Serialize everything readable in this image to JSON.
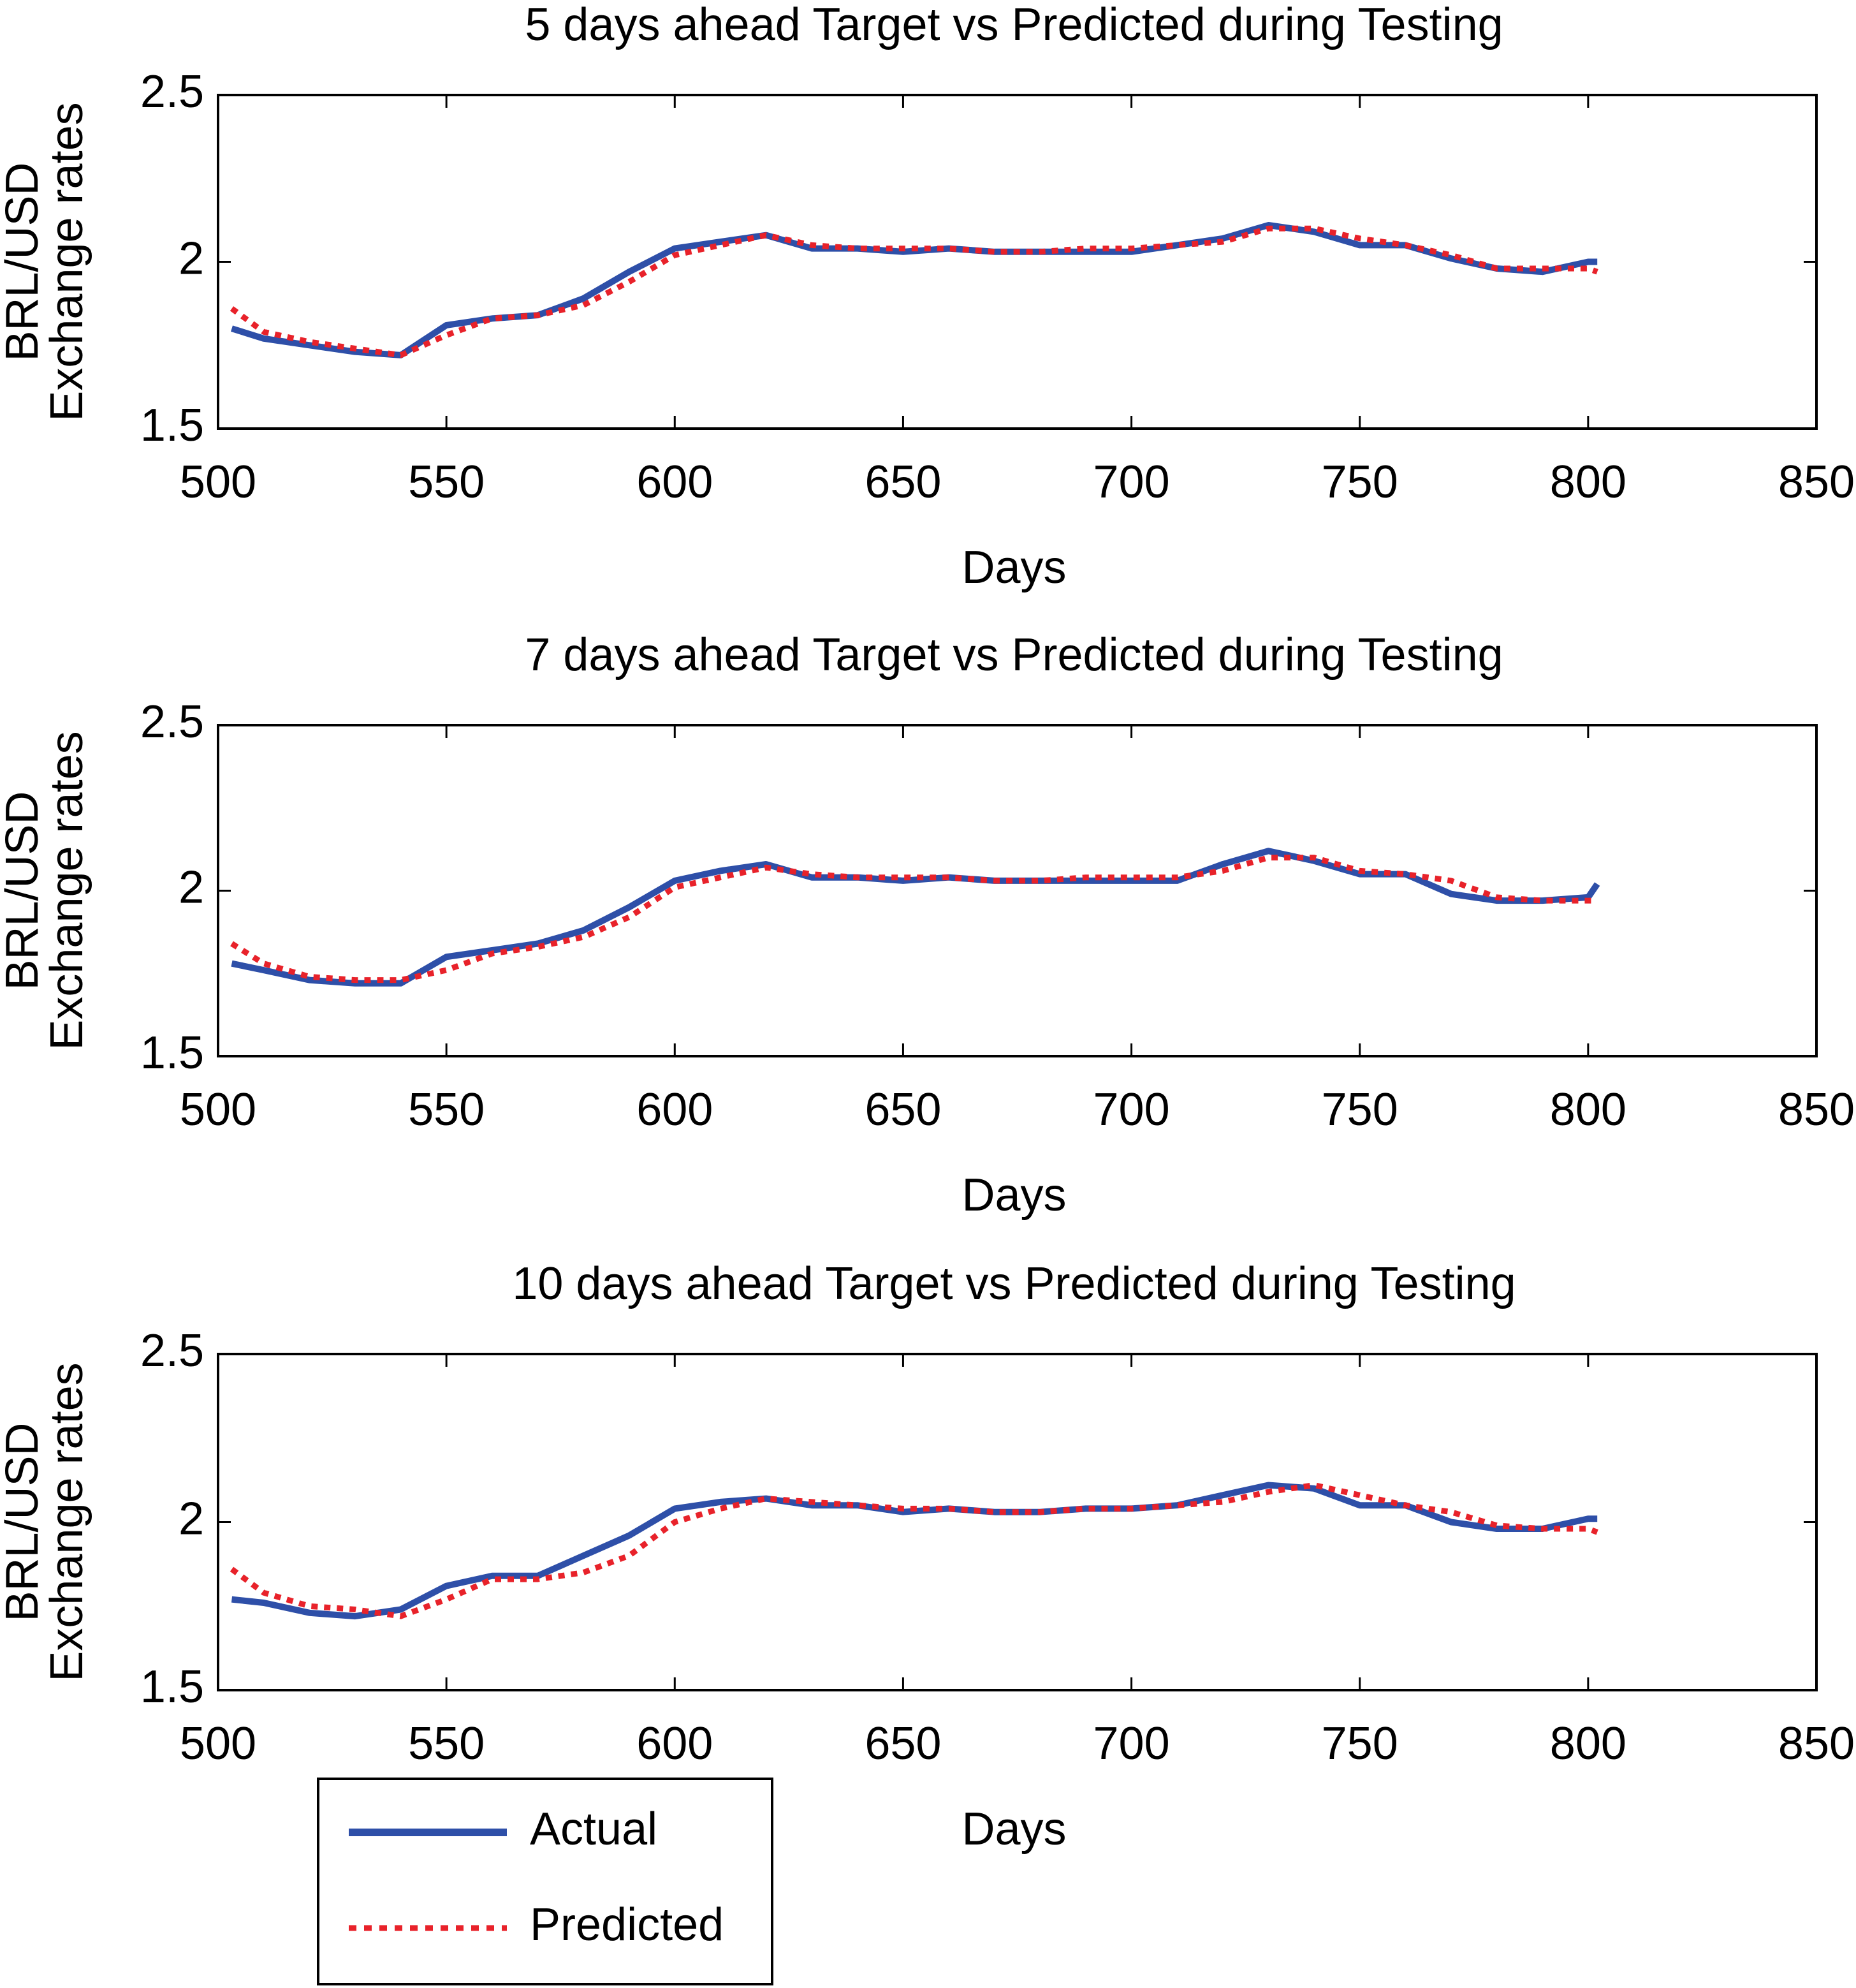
{
  "chart_data": [
    {
      "type": "line",
      "title": "5 days ahead Target vs Predicted during Testing",
      "xlabel": "Days",
      "ylabel": [
        "BRL/USD",
        "Exchange rates"
      ],
      "x": [
        503,
        510,
        520,
        530,
        540,
        550,
        560,
        570,
        580,
        590,
        600,
        610,
        620,
        630,
        640,
        650,
        660,
        670,
        680,
        690,
        700,
        710,
        720,
        730,
        740,
        750,
        760,
        770,
        780,
        790,
        800,
        802
      ],
      "series": [
        {
          "color": "#2e4fa8",
          "values": [
            1.8,
            1.77,
            1.75,
            1.73,
            1.72,
            1.81,
            1.83,
            1.84,
            1.89,
            1.97,
            2.04,
            2.06,
            2.08,
            2.04,
            2.04,
            2.03,
            2.04,
            2.03,
            2.03,
            2.03,
            2.03,
            2.05,
            2.07,
            2.11,
            2.09,
            2.05,
            2.05,
            2.01,
            1.98,
            1.97,
            2.0,
            2.0
          ]
        },
        {
          "color": "#e8222a",
          "dashed": true,
          "values": [
            1.86,
            1.79,
            1.76,
            1.74,
            1.72,
            1.78,
            1.83,
            1.84,
            1.87,
            1.94,
            2.02,
            2.05,
            2.08,
            2.05,
            2.04,
            2.04,
            2.04,
            2.03,
            2.03,
            2.04,
            2.04,
            2.05,
            2.06,
            2.1,
            2.1,
            2.07,
            2.05,
            2.02,
            1.98,
            1.98,
            1.98,
            1.97
          ]
        }
      ],
      "xlim": [
        500,
        850
      ],
      "xticks": [
        500,
        550,
        600,
        650,
        700,
        750,
        800,
        850
      ],
      "ylim": [
        1.5,
        2.5
      ],
      "yticks": [
        1.5,
        2,
        2.5
      ]
    },
    {
      "type": "line",
      "title": "7 days ahead Target vs Predicted during Testing",
      "xlabel": "Days",
      "ylabel": [
        "BRL/USD",
        "Exchange rates"
      ],
      "x": [
        503,
        510,
        520,
        530,
        540,
        550,
        560,
        570,
        580,
        590,
        600,
        610,
        620,
        630,
        640,
        650,
        660,
        670,
        680,
        690,
        700,
        710,
        720,
        730,
        740,
        750,
        760,
        770,
        780,
        790,
        800,
        802
      ],
      "series": [
        {
          "color": "#2e4fa8",
          "values": [
            1.78,
            1.76,
            1.73,
            1.72,
            1.72,
            1.8,
            1.82,
            1.84,
            1.88,
            1.95,
            2.03,
            2.06,
            2.08,
            2.04,
            2.04,
            2.03,
            2.04,
            2.03,
            2.03,
            2.03,
            2.03,
            2.03,
            2.08,
            2.12,
            2.09,
            2.05,
            2.05,
            1.99,
            1.97,
            1.97,
            1.98,
            2.02
          ]
        },
        {
          "color": "#e8222a",
          "dashed": true,
          "values": [
            1.84,
            1.78,
            1.74,
            1.73,
            1.73,
            1.76,
            1.81,
            1.83,
            1.86,
            1.92,
            2.01,
            2.04,
            2.07,
            2.05,
            2.04,
            2.04,
            2.04,
            2.03,
            2.03,
            2.04,
            2.04,
            2.04,
            2.06,
            2.1,
            2.1,
            2.06,
            2.05,
            2.03,
            1.98,
            1.97,
            1.97,
            1.97
          ]
        }
      ],
      "xlim": [
        500,
        850
      ],
      "xticks": [
        500,
        550,
        600,
        650,
        700,
        750,
        800,
        850
      ],
      "ylim": [
        1.5,
        2.5
      ],
      "yticks": [
        1.5,
        2,
        2.5
      ]
    },
    {
      "type": "line",
      "title": "10 days ahead Target vs Predicted during Testing",
      "xlabel": "Days",
      "ylabel": [
        "BRL/USD",
        "Exchange rates"
      ],
      "x": [
        503,
        510,
        520,
        530,
        540,
        550,
        560,
        570,
        580,
        590,
        600,
        610,
        620,
        630,
        640,
        650,
        660,
        670,
        680,
        690,
        700,
        710,
        720,
        730,
        740,
        750,
        760,
        770,
        780,
        790,
        800,
        802
      ],
      "series": [
        {
          "name": "Actual",
          "color": "#2e4fa8",
          "values": [
            1.77,
            1.76,
            1.73,
            1.72,
            1.74,
            1.81,
            1.84,
            1.84,
            1.9,
            1.96,
            2.04,
            2.06,
            2.07,
            2.05,
            2.05,
            2.03,
            2.04,
            2.03,
            2.03,
            2.04,
            2.04,
            2.05,
            2.08,
            2.11,
            2.1,
            2.05,
            2.05,
            2.0,
            1.98,
            1.98,
            2.01,
            2.01
          ]
        },
        {
          "name": "Predicted",
          "color": "#e8222a",
          "dashed": true,
          "values": [
            1.86,
            1.79,
            1.75,
            1.74,
            1.72,
            1.77,
            1.83,
            1.83,
            1.85,
            1.9,
            2.0,
            2.04,
            2.07,
            2.06,
            2.05,
            2.04,
            2.04,
            2.03,
            2.03,
            2.04,
            2.04,
            2.05,
            2.06,
            2.09,
            2.11,
            2.08,
            2.05,
            2.03,
            1.99,
            1.98,
            1.98,
            1.97
          ]
        }
      ],
      "xlim": [
        500,
        850
      ],
      "xticks": [
        500,
        550,
        600,
        650,
        700,
        750,
        800,
        850
      ],
      "ylim": [
        1.5,
        2.5
      ],
      "yticks": [
        1.5,
        2,
        2.5
      ],
      "legend": "lower left"
    }
  ]
}
